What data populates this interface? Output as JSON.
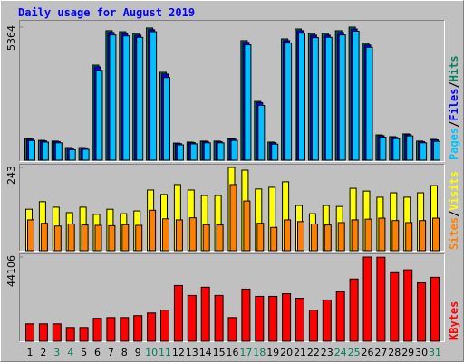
{
  "legend_separator": "/",
  "chart_data": [
    {
      "type": "bar",
      "title": "Daily usage for August 2019",
      "ylim": [
        0,
        5364
      ],
      "yticks": [
        5364
      ],
      "series": [
        {
          "name": "Hits",
          "color": "#00805c",
          "values": [
            876,
            800,
            770,
            510,
            510,
            3830,
            5220,
            5180,
            5110,
            5330,
            3540,
            690,
            730,
            770,
            770,
            876,
            4820,
            2370,
            730,
            4890,
            5290,
            5110,
            5110,
            5220,
            5364,
            4710,
            1020,
            950,
            1060,
            770,
            840
          ]
        },
        {
          "name": "Files",
          "color": "#0000ff",
          "values": [
            850,
            780,
            750,
            490,
            495,
            3760,
            5150,
            5110,
            5040,
            5260,
            3470,
            670,
            710,
            750,
            750,
            850,
            4750,
            2320,
            710,
            4820,
            5220,
            5040,
            5040,
            5150,
            5290,
            4640,
            990,
            920,
            1030,
            750,
            820
          ]
        },
        {
          "name": "Pages",
          "color": "#00c0ff",
          "values": [
            790,
            730,
            700,
            420,
            440,
            3620,
            5050,
            5010,
            4950,
            5180,
            3330,
            620,
            660,
            700,
            700,
            800,
            4650,
            2210,
            650,
            4720,
            5120,
            4940,
            4950,
            5050,
            5200,
            4550,
            930,
            870,
            980,
            700,
            760
          ]
        }
      ]
    },
    {
      "type": "bar",
      "ylim": [
        0,
        243
      ],
      "yticks": [
        243
      ],
      "series": [
        {
          "name": "Visits",
          "color": "#ffff00",
          "values": [
            121,
            143,
            127,
            111,
            127,
            106,
            121,
            108,
            116,
            177,
            164,
            193,
            177,
            161,
            161,
            243,
            235,
            180,
            185,
            201,
            132,
            108,
            132,
            129,
            182,
            174,
            156,
            169,
            156,
            169,
            190
          ]
        },
        {
          "name": "Sites",
          "color": "#ff8000",
          "values": [
            90,
            80,
            72,
            78,
            75,
            74,
            73,
            76,
            74,
            118,
            93,
            90,
            96,
            76,
            75,
            193,
            145,
            80,
            68,
            90,
            85,
            78,
            75,
            82,
            90,
            92,
            95,
            88,
            82,
            88,
            95
          ]
        }
      ]
    },
    {
      "type": "bar",
      "ylim": [
        0,
        44106
      ],
      "yticks": [
        44106
      ],
      "categories": [
        "1",
        "2",
        "3",
        "4",
        "5",
        "6",
        "7",
        "8",
        "9",
        "10",
        "11",
        "12",
        "13",
        "14",
        "15",
        "16",
        "17",
        "18",
        "19",
        "20",
        "21",
        "22",
        "23",
        "24",
        "25",
        "26",
        "27",
        "28",
        "29",
        "30",
        "31"
      ],
      "category_colors": [
        "#000000",
        "#000000",
        "#00805c",
        "#00805c",
        "#000000",
        "#000000",
        "#000000",
        "#000000",
        "#000000",
        "#00805c",
        "#00805c",
        "#000000",
        "#000000",
        "#000000",
        "#000000",
        "#000000",
        "#00805c",
        "#00805c",
        "#000000",
        "#000000",
        "#000000",
        "#000000",
        "#000000",
        "#00805c",
        "#00805c",
        "#000000",
        "#000000",
        "#000000",
        "#000000",
        "#000000",
        "#00805c"
      ],
      "series": [
        {
          "name": "KBytes",
          "color": "#ff0000",
          "values": [
            9100,
            9100,
            9100,
            7200,
            7200,
            12000,
            12400,
            12400,
            13400,
            14800,
            16300,
            29200,
            24000,
            28300,
            24000,
            12400,
            27300,
            23500,
            23500,
            24900,
            22500,
            16300,
            21600,
            25900,
            32600,
            44106,
            44000,
            35900,
            37400,
            30600,
            33500
          ]
        }
      ]
    }
  ]
}
